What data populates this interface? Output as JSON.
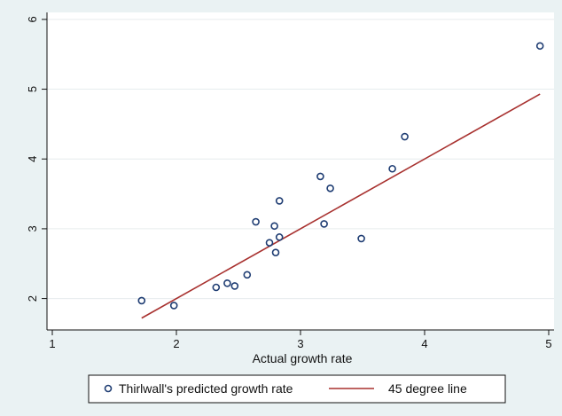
{
  "chart_data": {
    "type": "scatter",
    "title": "",
    "xlabel": "Actual growth rate",
    "ylabel": "",
    "xlim": [
      1,
      5
    ],
    "ylim": [
      1.55,
      6.1
    ],
    "xticks": [
      "1",
      "2",
      "3",
      "4",
      "5"
    ],
    "yticks": [
      "2",
      "3",
      "4",
      "5",
      "6"
    ],
    "grid": "horizontal",
    "legend_position": "bottom",
    "series": [
      {
        "name": "Thirlwall's predicted growth rate",
        "kind": "scatter",
        "marker": "hollow-circle",
        "color": "#1f3d73",
        "points": [
          [
            1.72,
            1.97
          ],
          [
            1.98,
            1.9
          ],
          [
            2.32,
            2.16
          ],
          [
            2.41,
            2.22
          ],
          [
            2.47,
            2.18
          ],
          [
            2.57,
            2.34
          ],
          [
            2.64,
            3.1
          ],
          [
            2.75,
            2.8
          ],
          [
            2.79,
            3.04
          ],
          [
            2.8,
            2.66
          ],
          [
            2.83,
            2.88
          ],
          [
            2.83,
            3.4
          ],
          [
            3.16,
            3.75
          ],
          [
            3.19,
            3.07
          ],
          [
            3.24,
            3.58
          ],
          [
            3.49,
            2.86
          ],
          [
            3.74,
            3.86
          ],
          [
            3.84,
            4.32
          ],
          [
            4.93,
            5.62
          ]
        ]
      },
      {
        "name": "45 degree line",
        "kind": "line",
        "color": "#a8312f",
        "points": [
          [
            1.72,
            1.72
          ],
          [
            4.93,
            4.93
          ]
        ]
      }
    ]
  }
}
